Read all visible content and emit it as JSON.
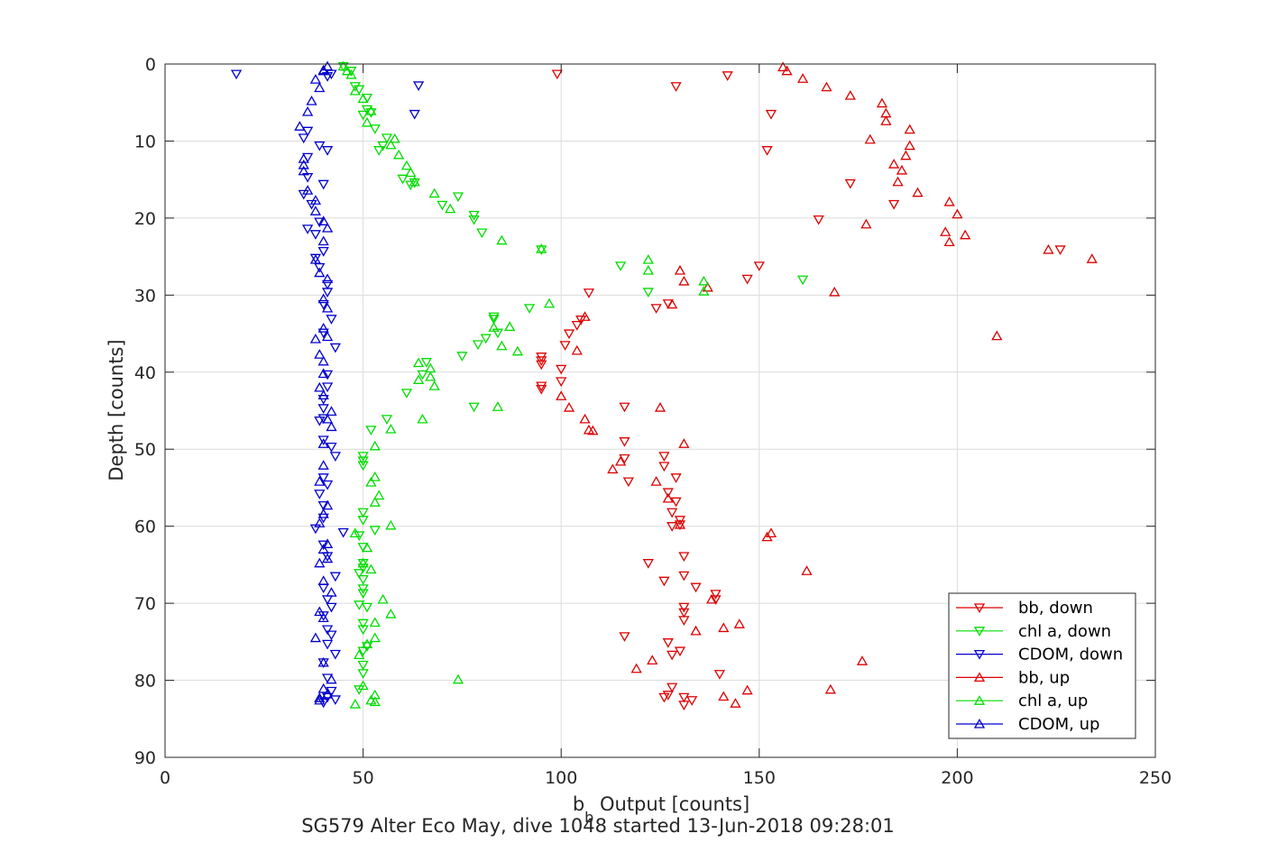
{
  "chart_data": {
    "type": "scatter",
    "title": "",
    "footer": "SG579 Alter Eco May, dive 1048 started 13-Jun-2018 09:28:01",
    "xlabel_main": "b",
    "xlabel_sub": "b",
    "xlabel_rest": " Output [counts]",
    "ylabel": "Depth [counts]",
    "xlim": [
      0,
      250
    ],
    "ylim": [
      0,
      90
    ],
    "y_reversed": true,
    "xticks": [
      0,
      50,
      100,
      150,
      200,
      250
    ],
    "yticks": [
      0,
      10,
      20,
      30,
      40,
      50,
      60,
      70,
      80,
      90
    ],
    "grid": true,
    "legend_position": "lower-right",
    "series": [
      {
        "name": "bb, down",
        "color": "#dd0000",
        "marker": "triangle-down",
        "x": [
          99,
          142,
          129,
          153,
          152,
          173,
          165,
          184,
          150,
          147,
          226,
          107,
          124,
          127,
          105,
          104,
          102,
          101,
          95,
          95,
          95,
          100,
          100,
          95,
          95,
          116,
          116,
          116,
          117,
          126,
          126,
          127,
          129,
          129,
          128,
          130,
          130,
          128,
          131,
          122,
          131,
          131,
          131,
          126,
          134,
          139,
          139,
          131,
          130,
          127,
          116,
          128,
          128,
          140,
          127,
          126,
          131,
          133,
          131
        ],
        "y": [
          1.3,
          1.5,
          2.9,
          6.5,
          11.2,
          15.5,
          20.2,
          18.2,
          26.2,
          27.9,
          24.1,
          29.7,
          31.7,
          31.1,
          33.2,
          33.9,
          35,
          36.5,
          38.5,
          38,
          39,
          39.6,
          41.2,
          42.2,
          41.8,
          44.5,
          49,
          51.2,
          54.2,
          50.9,
          52.2,
          55.6,
          56.8,
          53.7,
          58.2,
          59.8,
          59.2,
          60,
          63.9,
          64.8,
          66.4,
          71.2,
          70.5,
          67.1,
          67.9,
          68.8,
          69.5,
          72.2,
          76.2,
          75.1,
          74.3,
          76.7,
          80.9,
          79.2,
          81.9,
          82.2,
          82.2,
          82.6,
          83.2
        ]
      },
      {
        "name": "chl a, down",
        "color": "#00dd00",
        "marker": "triangle-down",
        "x": [
          45,
          47,
          48,
          49,
          51,
          50,
          51,
          52,
          53,
          56,
          55,
          54,
          60,
          62,
          63,
          70,
          74,
          78,
          78,
          80,
          95,
          115,
          122,
          161,
          92,
          83,
          83,
          84,
          81,
          79,
          75,
          78,
          61,
          65,
          66,
          56,
          52,
          50,
          50,
          50,
          50,
          50,
          50,
          49,
          50,
          53,
          50,
          49,
          50,
          50,
          50,
          51,
          49,
          50,
          50,
          51,
          50,
          50,
          50,
          49
        ],
        "y": [
          0.3,
          0.9,
          2.9,
          3.3,
          4.4,
          6.6,
          5.9,
          6.3,
          8.4,
          9.6,
          10.6,
          11.2,
          14.9,
          15.7,
          15.4,
          18.3,
          17.2,
          20.2,
          19.6,
          21.9,
          24.1,
          26.2,
          29.6,
          28,
          31.7,
          33.1,
          32.8,
          34.9,
          35.6,
          36.4,
          37.9,
          44.5,
          42.7,
          40.3,
          38.7,
          46.1,
          47.5,
          50.9,
          51.5,
          52.1,
          58.2,
          59.2,
          62.7,
          61.2,
          64.8,
          60.5,
          65.4,
          66.1,
          66.9,
          68.1,
          68.7,
          70.5,
          70.2,
          72.6,
          73.4,
          75.6,
          76.2,
          78,
          79.1,
          81.2
        ]
      },
      {
        "name": "CDOM, down",
        "color": "#0000cc",
        "marker": "triangle-down",
        "x": [
          18,
          41,
          42,
          64,
          63,
          41,
          40,
          37,
          39,
          38,
          36,
          41,
          36,
          35,
          36,
          35,
          36,
          39,
          40,
          39,
          38,
          41,
          40,
          42,
          40,
          43,
          41,
          41,
          40,
          40,
          40,
          39,
          40,
          42,
          43,
          40,
          41,
          39,
          40,
          40,
          38,
          40,
          41,
          43,
          40,
          41,
          42,
          40,
          41,
          42,
          41,
          43,
          45,
          40,
          41,
          42,
          41,
          43,
          40
        ],
        "y": [
          1.3,
          1.6,
          1.3,
          2.8,
          6.5,
          11.2,
          15.6,
          18.2,
          20.5,
          22.1,
          21.4,
          28.6,
          14.7,
          16.9,
          12.1,
          9.6,
          8.7,
          10.6,
          24.3,
          26.4,
          25.2,
          29.6,
          31.2,
          33.1,
          34.9,
          36.8,
          40.3,
          41.9,
          43.5,
          44.7,
          46,
          46.3,
          48.8,
          49.7,
          50.9,
          53.7,
          54.6,
          55.8,
          57.3,
          58.9,
          60.3,
          62.4,
          63.9,
          66.5,
          68,
          69.5,
          70.5,
          71.6,
          73.4,
          74.1,
          75.3,
          76.6,
          60.8,
          77.7,
          79.7,
          81.4,
          82.2,
          82.5,
          82.9
        ]
      },
      {
        "name": "bb, up",
        "color": "#dd0000",
        "marker": "triangle-up",
        "x": [
          156,
          157,
          161,
          167,
          173,
          181,
          182,
          182,
          188,
          178,
          188,
          187,
          184,
          186,
          185,
          190,
          198,
          200,
          197,
          202,
          198,
          177,
          234,
          223,
          130,
          131,
          137,
          128,
          169,
          106,
          210,
          104,
          100,
          102,
          106,
          107,
          108,
          125,
          131,
          113,
          115,
          124,
          127,
          130,
          153,
          152,
          162,
          138,
          145,
          141,
          134,
          176,
          168,
          147,
          141,
          144,
          119,
          123
        ],
        "y": [
          0.4,
          0.9,
          1.9,
          3,
          4.1,
          5.1,
          6.4,
          7.4,
          8.5,
          9.8,
          10.6,
          11.9,
          13,
          13.8,
          15.3,
          16.7,
          17.9,
          19.5,
          21.8,
          22.2,
          23.1,
          20.8,
          25.3,
          24.1,
          26.8,
          28.2,
          29,
          31.2,
          29.6,
          32.8,
          35.3,
          37.2,
          43.1,
          44.6,
          46.1,
          47.5,
          47.6,
          44.6,
          49.3,
          52.6,
          51.6,
          54.2,
          56.4,
          59.8,
          60.9,
          61.4,
          65.8,
          69.5,
          72.7,
          73.2,
          73.6,
          77.5,
          81.2,
          81.3,
          82.1,
          83,
          78.5,
          77.4
        ]
      },
      {
        "name": "chl a, up",
        "color": "#00dd00",
        "marker": "triangle-up",
        "x": [
          45,
          46,
          47,
          48,
          50,
          52,
          51,
          58,
          57,
          59,
          61,
          62,
          63,
          68,
          72,
          85,
          95,
          122,
          122,
          136,
          136,
          97,
          83,
          87,
          85,
          89,
          84,
          64,
          67,
          67,
          64,
          68,
          65,
          57,
          53,
          53,
          52,
          54,
          53,
          57,
          48,
          51,
          50,
          52,
          55,
          57,
          53,
          53,
          51,
          74,
          50,
          53,
          53,
          48,
          52,
          49
        ],
        "y": [
          0.3,
          0.9,
          1.4,
          3.5,
          4.5,
          6.1,
          7.6,
          9.7,
          10.5,
          11.8,
          13.2,
          14.1,
          15.3,
          16.8,
          18.8,
          22.9,
          24,
          25.4,
          26.8,
          28.2,
          29.5,
          31.1,
          34.2,
          34.1,
          36.6,
          37.3,
          44.5,
          38.8,
          39.5,
          40.6,
          41,
          41.8,
          46.1,
          47.4,
          49.6,
          53.6,
          54.3,
          56,
          56.9,
          59.9,
          60.9,
          62.8,
          64.8,
          65.6,
          69.5,
          71.4,
          72.5,
          74.5,
          75.3,
          79.9,
          80.7,
          81.9,
          82.8,
          83.1,
          82.6,
          76.7
        ]
      },
      {
        "name": "CDOM, up",
        "color": "#0000cc",
        "marker": "triangle-up",
        "x": [
          40,
          41,
          40,
          38,
          39,
          37,
          36,
          34,
          35,
          35,
          35,
          36,
          38,
          38,
          40,
          41,
          40,
          38,
          39,
          41,
          40,
          41,
          40,
          41,
          38,
          39,
          40,
          40,
          39,
          40,
          42,
          41,
          42,
          40,
          40,
          39,
          41,
          40,
          39,
          41,
          40,
          41,
          39,
          40,
          42,
          39,
          40,
          38,
          40,
          42,
          40,
          41,
          39,
          39
        ],
        "y": [
          0.9,
          0.3,
          0.8,
          2,
          3.1,
          4.8,
          6.2,
          8.1,
          12.3,
          13.1,
          13.9,
          16.4,
          17.7,
          19.1,
          20.4,
          21.3,
          23,
          25.4,
          27.1,
          27.9,
          30.5,
          31.7,
          34.3,
          35.4,
          35.7,
          37.7,
          38.6,
          40.2,
          42,
          43,
          45.1,
          46.1,
          47.1,
          49.3,
          52.1,
          54.2,
          57.3,
          58.4,
          59.6,
          62.3,
          63,
          64.2,
          64.8,
          67.1,
          68.6,
          71.1,
          71.9,
          74.5,
          77.7,
          79.9,
          81.1,
          81.8,
          82.3,
          82.6
        ]
      }
    ]
  }
}
